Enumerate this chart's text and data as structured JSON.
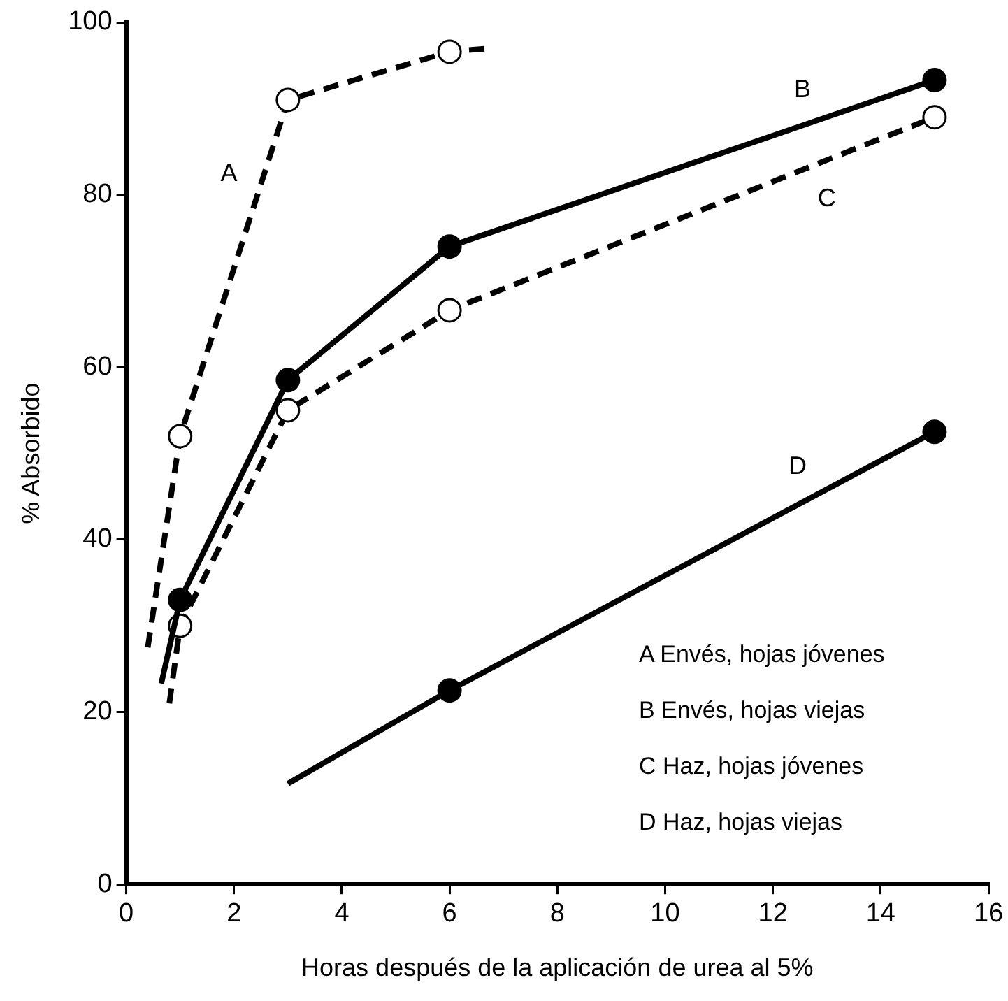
{
  "chart_data": {
    "type": "line",
    "xlabel": "Horas después de la aplicación de urea al 5%",
    "ylabel": "% Absorbido",
    "xlim": [
      0,
      16
    ],
    "xticks": [
      0,
      2,
      4,
      6,
      8,
      10,
      12,
      14,
      16
    ],
    "ylim": [
      0,
      100
    ],
    "yticks": [
      0,
      20,
      40,
      60,
      80,
      100
    ],
    "grid": false,
    "legend": false,
    "marker": "circle",
    "series": [
      {
        "name": "A",
        "color": "#000000",
        "line_style": "dashed",
        "x": [
          0.4,
          1,
          3,
          6,
          6.75
        ],
        "values": [
          27.5,
          52,
          91,
          96.6,
          97
        ]
      },
      {
        "name": "B",
        "color": "#000000",
        "line_style": "solid",
        "x": [
          0.65,
          1,
          3,
          6,
          15
        ],
        "values": [
          23.3,
          33,
          58.5,
          74,
          93.3
        ]
      },
      {
        "name": "C",
        "color": "#000000",
        "line_style": "dashed",
        "x": [
          0.8,
          1,
          3,
          6,
          15
        ],
        "values": [
          21,
          30,
          55,
          66.6,
          89
        ]
      },
      {
        "name": "D",
        "color": "#000000",
        "line_style": "solid",
        "x": [
          3,
          6,
          15
        ],
        "values": [
          11.7,
          22.5,
          52.5
        ]
      }
    ],
    "annotations": [
      "A Envés, hojas jóvenes",
      "B Envés, hojas viejas",
      "C Haz, hojas jóvenes",
      "D Haz, hojas viejas"
    ]
  }
}
